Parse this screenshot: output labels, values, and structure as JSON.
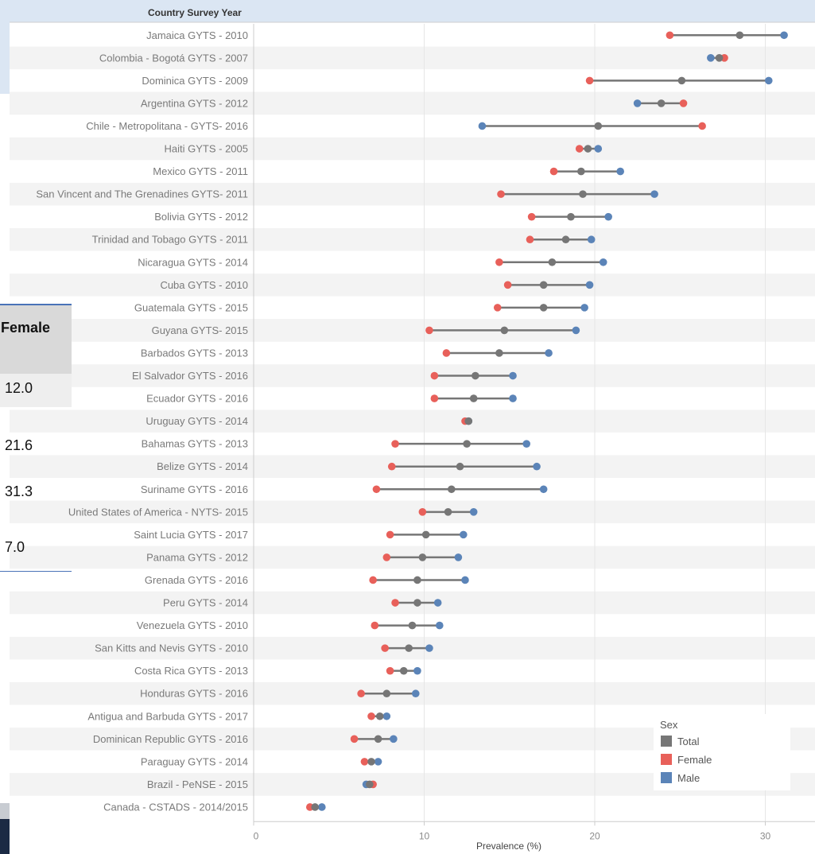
{
  "table_fragment": {
    "header": "Female",
    "values": [
      "12.0",
      "21.6",
      "31.3",
      "7.0"
    ]
  },
  "chart_data": {
    "type": "dumbbell",
    "header": "Country Survey Year",
    "xlabel": "Prevalence (%)",
    "xlim": [
      0,
      32
    ],
    "xticks": [
      "0",
      "10",
      "20",
      "30"
    ],
    "legend": {
      "title": "Sex",
      "entries": [
        "Total",
        "Female",
        "Male"
      ],
      "placement": "bottom-right"
    },
    "colors": {
      "Total": "#767676",
      "Female": "#e8605a",
      "Male": "#5b84b8"
    },
    "rows": [
      {
        "label": "Jamaica GYTS - 2010",
        "female": 24.4,
        "total": 28.5,
        "male": 31.1
      },
      {
        "label": "Colombia - Bogotá GYTS - 2007",
        "female": 27.6,
        "total": 27.3,
        "male": 26.8
      },
      {
        "label": "Dominica GYTS - 2009",
        "female": 19.7,
        "total": 25.1,
        "male": 30.2
      },
      {
        "label": "Argentina GYTS - 2012",
        "female": 25.2,
        "total": 23.9,
        "male": 22.5
      },
      {
        "label": "Chile - Metropolitana - GYTS- 2016",
        "female": 26.3,
        "total": 20.2,
        "male": 13.4
      },
      {
        "label": "Haiti GYTS - 2005",
        "female": 19.1,
        "total": 19.6,
        "male": 20.2
      },
      {
        "label": "Mexico GYTS - 2011",
        "female": 17.6,
        "total": 19.2,
        "male": 21.5
      },
      {
        "label": "San Vincent and The Grenadines GYTS- 2011",
        "female": 14.5,
        "total": 19.3,
        "male": 23.5
      },
      {
        "label": "Bolivia GYTS - 2012",
        "female": 16.3,
        "total": 18.6,
        "male": 20.8
      },
      {
        "label": "Trinidad and Tobago GYTS - 2011",
        "female": 16.2,
        "total": 18.3,
        "male": 19.8
      },
      {
        "label": "Nicaragua GYTS - 2014",
        "female": 14.4,
        "total": 17.5,
        "male": 20.5
      },
      {
        "label": "Cuba GYTS - 2010",
        "female": 14.9,
        "total": 17.0,
        "male": 19.7
      },
      {
        "label": "Guatemala GYTS - 2015",
        "female": 14.3,
        "total": 17.0,
        "male": 19.4
      },
      {
        "label": "Guyana GYTS- 2015",
        "female": 10.3,
        "total": 14.7,
        "male": 18.9
      },
      {
        "label": "Barbados GYTS - 2013",
        "female": 11.3,
        "total": 14.4,
        "male": 17.3
      },
      {
        "label": "El Salvador GYTS - 2016",
        "female": 10.6,
        "total": 13.0,
        "male": 15.2
      },
      {
        "label": "Ecuador GYTS - 2016",
        "female": 10.6,
        "total": 12.9,
        "male": 15.2
      },
      {
        "label": "Uruguay GYTS - 2014",
        "female": 12.4,
        "total": 12.6,
        "male": 12.6
      },
      {
        "label": "Bahamas GYTS - 2013",
        "female": 8.3,
        "total": 12.5,
        "male": 16.0
      },
      {
        "label": "Belize GYTS - 2014",
        "female": 8.1,
        "total": 12.1,
        "male": 16.6
      },
      {
        "label": "Suriname GYTS - 2016",
        "female": 7.2,
        "total": 11.6,
        "male": 17.0
      },
      {
        "label": "United States of America - NYTS- 2015",
        "female": 9.9,
        "total": 11.4,
        "male": 12.9
      },
      {
        "label": "Saint Lucia GYTS - 2017",
        "female": 8.0,
        "total": 10.1,
        "male": 12.3
      },
      {
        "label": "Panama GYTS - 2012",
        "female": 7.8,
        "total": 9.9,
        "male": 12.0
      },
      {
        "label": "Grenada GYTS - 2016",
        "female": 7.0,
        "total": 9.6,
        "male": 12.4
      },
      {
        "label": "Peru GYTS - 2014",
        "female": 8.3,
        "total": 9.6,
        "male": 10.8
      },
      {
        "label": "Venezuela GYTS - 2010",
        "female": 7.1,
        "total": 9.3,
        "male": 10.9
      },
      {
        "label": "San Kitts and Nevis GYTS - 2010",
        "female": 7.7,
        "total": 9.1,
        "male": 10.3
      },
      {
        "label": "Costa Rica GYTS - 2013",
        "female": 8.0,
        "total": 8.8,
        "male": 9.6
      },
      {
        "label": "Honduras GYTS - 2016",
        "female": 6.3,
        "total": 7.8,
        "male": 9.5
      },
      {
        "label": "Antigua and Barbuda GYTS - 2017",
        "female": 6.9,
        "total": 7.4,
        "male": 7.8
      },
      {
        "label": "Dominican Republic GYTS - 2016",
        "female": 5.9,
        "total": 7.3,
        "male": 8.2
      },
      {
        "label": "Paraguay GYTS - 2014",
        "female": 6.5,
        "total": 6.9,
        "male": 7.3
      },
      {
        "label": "Brazil - PeNSE - 2015",
        "female": 7.0,
        "total": 6.8,
        "male": 6.6
      },
      {
        "label": "Canada - CSTADS - 2014/2015",
        "female": 3.3,
        "total": 3.6,
        "male": 4.0
      }
    ]
  }
}
